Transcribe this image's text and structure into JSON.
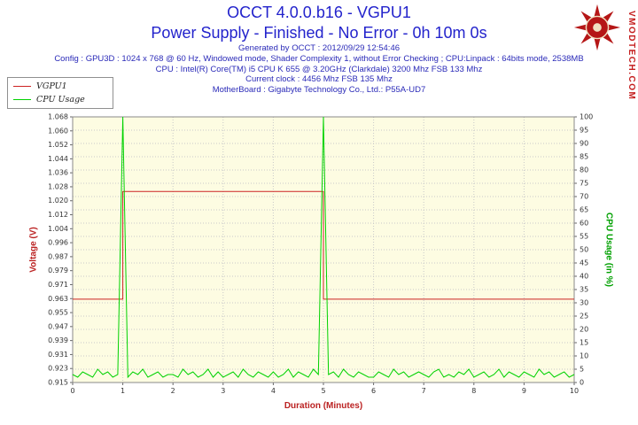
{
  "header": {
    "title": "OCCT 4.0.0.b16 - VGPU1",
    "subtitle": "Power Supply - Finished - No Error - 0h 10m 0s",
    "title_color": "#2323cc",
    "info_lines": [
      "Generated by OCCT : 2012/09/29 12:54:46",
      "Config : GPU3D : 1024 x 768 @ 60 Hz, Windowed mode, Shader Complexity 1, without Error Checking ; CPU:Linpack : 64bits mode, 2538MB",
      "CPU : Intel(R) Core(TM) i5 CPU K 655 @ 3.20GHz (Clarkdale) 3200 Mhz FSB 133 Mhz",
      "Current clock : 4456 Mhz FSB 135 Mhz",
      "MotherBoard : Gigabyte Technology Co., Ltd.: P55A-UD7"
    ]
  },
  "watermark": {
    "text": "VMODTECH.COM",
    "color": "#c41d1d"
  },
  "legend": {
    "items": [
      {
        "label": "VGPU1",
        "color": "#cc2222"
      },
      {
        "label": "CPU Usage",
        "color": "#00d200"
      }
    ]
  },
  "chart_data": {
    "type": "line",
    "title": "OCCT 4.0.0.b16 - VGPU1",
    "xlabel": "Duration (Minutes)",
    "xlim": [
      0,
      10
    ],
    "x_ticks": [
      "0",
      "1",
      "2",
      "3",
      "4",
      "5",
      "6",
      "7",
      "8",
      "9",
      "10"
    ],
    "grid": true,
    "legend_position": "top-left",
    "plot_bg": "#fdfce2",
    "grid_color": "#c9c9c9",
    "border_color": "#8a8a8a",
    "tick_text_color": "#333333",
    "left_axis": {
      "label": "Voltage (V)",
      "min": 0.915,
      "max": 1.068,
      "color": "#bb2222",
      "ticks": [
        "1.068",
        "1.060",
        "1.052",
        "1.044",
        "1.036",
        "1.028",
        "1.020",
        "1.012",
        "1.004",
        "0.996",
        "0.987",
        "0.979",
        "0.971",
        "0.963",
        "0.955",
        "0.947",
        "0.939",
        "0.931",
        "0.923",
        "0.915"
      ]
    },
    "right_axis": {
      "label": "CPU Usage (in %)",
      "min": 0,
      "max": 100,
      "color": "#00a000",
      "ticks": [
        "100",
        "95",
        "90",
        "85",
        "80",
        "75",
        "70",
        "65",
        "60",
        "55",
        "50",
        "45",
        "40",
        "35",
        "30",
        "25",
        "20",
        "15",
        "10",
        "5",
        "0"
      ]
    },
    "series": [
      {
        "name": "VGPU1",
        "axis": "left",
        "color": "#cc2222",
        "points": [
          [
            0,
            0.963
          ],
          [
            1,
            0.963
          ],
          [
            1,
            1.025
          ],
          [
            5,
            1.025
          ],
          [
            5,
            0.963
          ],
          [
            10,
            0.963
          ]
        ]
      },
      {
        "name": "CPU Usage",
        "axis": "right",
        "color": "#00d200",
        "x_start": 0,
        "x_step": 0.1,
        "values": [
          3,
          2,
          4,
          3,
          2,
          5,
          3,
          4,
          2,
          3,
          100,
          2,
          4,
          3,
          5,
          2,
          3,
          4,
          2,
          3,
          3,
          2,
          5,
          3,
          4,
          2,
          3,
          5,
          2,
          4,
          2,
          3,
          4,
          2,
          5,
          3,
          2,
          4,
          3,
          2,
          4,
          2,
          3,
          5,
          2,
          4,
          3,
          2,
          5,
          3,
          100,
          3,
          4,
          2,
          5,
          3,
          2,
          4,
          3,
          2,
          2,
          4,
          3,
          2,
          5,
          3,
          4,
          2,
          3,
          4,
          3,
          2,
          4,
          5,
          2,
          3,
          2,
          4,
          3,
          5,
          2,
          3,
          4,
          2,
          3,
          5,
          2,
          4,
          3,
          2,
          4,
          3,
          2,
          5,
          3,
          4,
          2,
          3,
          4,
          2,
          3
        ]
      }
    ]
  }
}
